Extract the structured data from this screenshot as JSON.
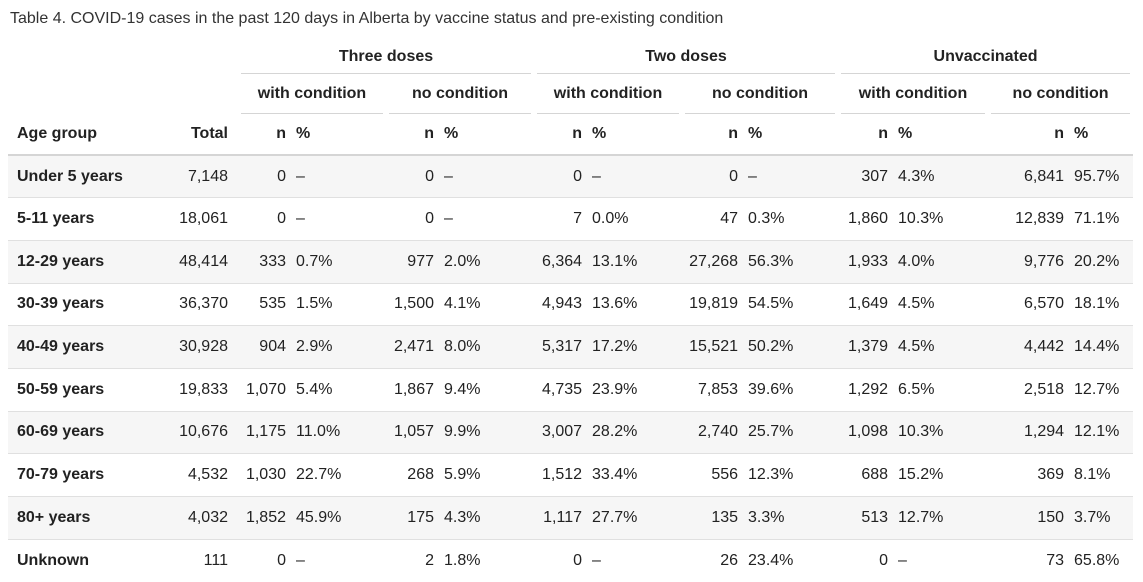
{
  "caption": "Table 4. COVID-19 cases in the past 120 days in Alberta by vaccine status and pre-existing condition",
  "groups": [
    "Three doses",
    "Two doses",
    "Unvaccinated"
  ],
  "subgroups": [
    "with condition",
    "no condition",
    "with condition",
    "no condition",
    "with condition",
    "no condition"
  ],
  "columns": {
    "age": "Age group",
    "total": "Total",
    "n": "n",
    "pct": "%"
  },
  "rows": [
    {
      "age": "Under 5 years",
      "total": "7,148",
      "c": [
        [
          "0",
          "–"
        ],
        [
          "0",
          "–"
        ],
        [
          "0",
          "–"
        ],
        [
          "0",
          "–"
        ],
        [
          "307",
          "4.3%"
        ],
        [
          "6,841",
          "95.7%"
        ]
      ]
    },
    {
      "age": "5-11 years",
      "total": "18,061",
      "c": [
        [
          "0",
          "–"
        ],
        [
          "0",
          "–"
        ],
        [
          "7",
          "0.0%"
        ],
        [
          "47",
          "0.3%"
        ],
        [
          "1,860",
          "10.3%"
        ],
        [
          "12,839",
          "71.1%"
        ]
      ]
    },
    {
      "age": "12-29 years",
      "total": "48,414",
      "c": [
        [
          "333",
          "0.7%"
        ],
        [
          "977",
          "2.0%"
        ],
        [
          "6,364",
          "13.1%"
        ],
        [
          "27,268",
          "56.3%"
        ],
        [
          "1,933",
          "4.0%"
        ],
        [
          "9,776",
          "20.2%"
        ]
      ]
    },
    {
      "age": "30-39 years",
      "total": "36,370",
      "c": [
        [
          "535",
          "1.5%"
        ],
        [
          "1,500",
          "4.1%"
        ],
        [
          "4,943",
          "13.6%"
        ],
        [
          "19,819",
          "54.5%"
        ],
        [
          "1,649",
          "4.5%"
        ],
        [
          "6,570",
          "18.1%"
        ]
      ]
    },
    {
      "age": "40-49 years",
      "total": "30,928",
      "c": [
        [
          "904",
          "2.9%"
        ],
        [
          "2,471",
          "8.0%"
        ],
        [
          "5,317",
          "17.2%"
        ],
        [
          "15,521",
          "50.2%"
        ],
        [
          "1,379",
          "4.5%"
        ],
        [
          "4,442",
          "14.4%"
        ]
      ]
    },
    {
      "age": "50-59 years",
      "total": "19,833",
      "c": [
        [
          "1,070",
          "5.4%"
        ],
        [
          "1,867",
          "9.4%"
        ],
        [
          "4,735",
          "23.9%"
        ],
        [
          "7,853",
          "39.6%"
        ],
        [
          "1,292",
          "6.5%"
        ],
        [
          "2,518",
          "12.7%"
        ]
      ]
    },
    {
      "age": "60-69 years",
      "total": "10,676",
      "c": [
        [
          "1,175",
          "11.0%"
        ],
        [
          "1,057",
          "9.9%"
        ],
        [
          "3,007",
          "28.2%"
        ],
        [
          "2,740",
          "25.7%"
        ],
        [
          "1,098",
          "10.3%"
        ],
        [
          "1,294",
          "12.1%"
        ]
      ]
    },
    {
      "age": "70-79 years",
      "total": "4,532",
      "c": [
        [
          "1,030",
          "22.7%"
        ],
        [
          "268",
          "5.9%"
        ],
        [
          "1,512",
          "33.4%"
        ],
        [
          "556",
          "12.3%"
        ],
        [
          "688",
          "15.2%"
        ],
        [
          "369",
          "8.1%"
        ]
      ]
    },
    {
      "age": "80+ years",
      "total": "4,032",
      "c": [
        [
          "1,852",
          "45.9%"
        ],
        [
          "175",
          "4.3%"
        ],
        [
          "1,117",
          "27.7%"
        ],
        [
          "135",
          "3.3%"
        ],
        [
          "513",
          "12.7%"
        ],
        [
          "150",
          "3.7%"
        ]
      ]
    },
    {
      "age": "Unknown",
      "total": "111",
      "c": [
        [
          "0",
          "–"
        ],
        [
          "2",
          "1.8%"
        ],
        [
          "0",
          "–"
        ],
        [
          "26",
          "23.4%"
        ],
        [
          "0",
          "–"
        ],
        [
          "73",
          "65.8%"
        ]
      ]
    }
  ],
  "colors": {
    "stripe": "#f6f6f6",
    "rule": "#d5d5d5",
    "text": "#222222"
  }
}
